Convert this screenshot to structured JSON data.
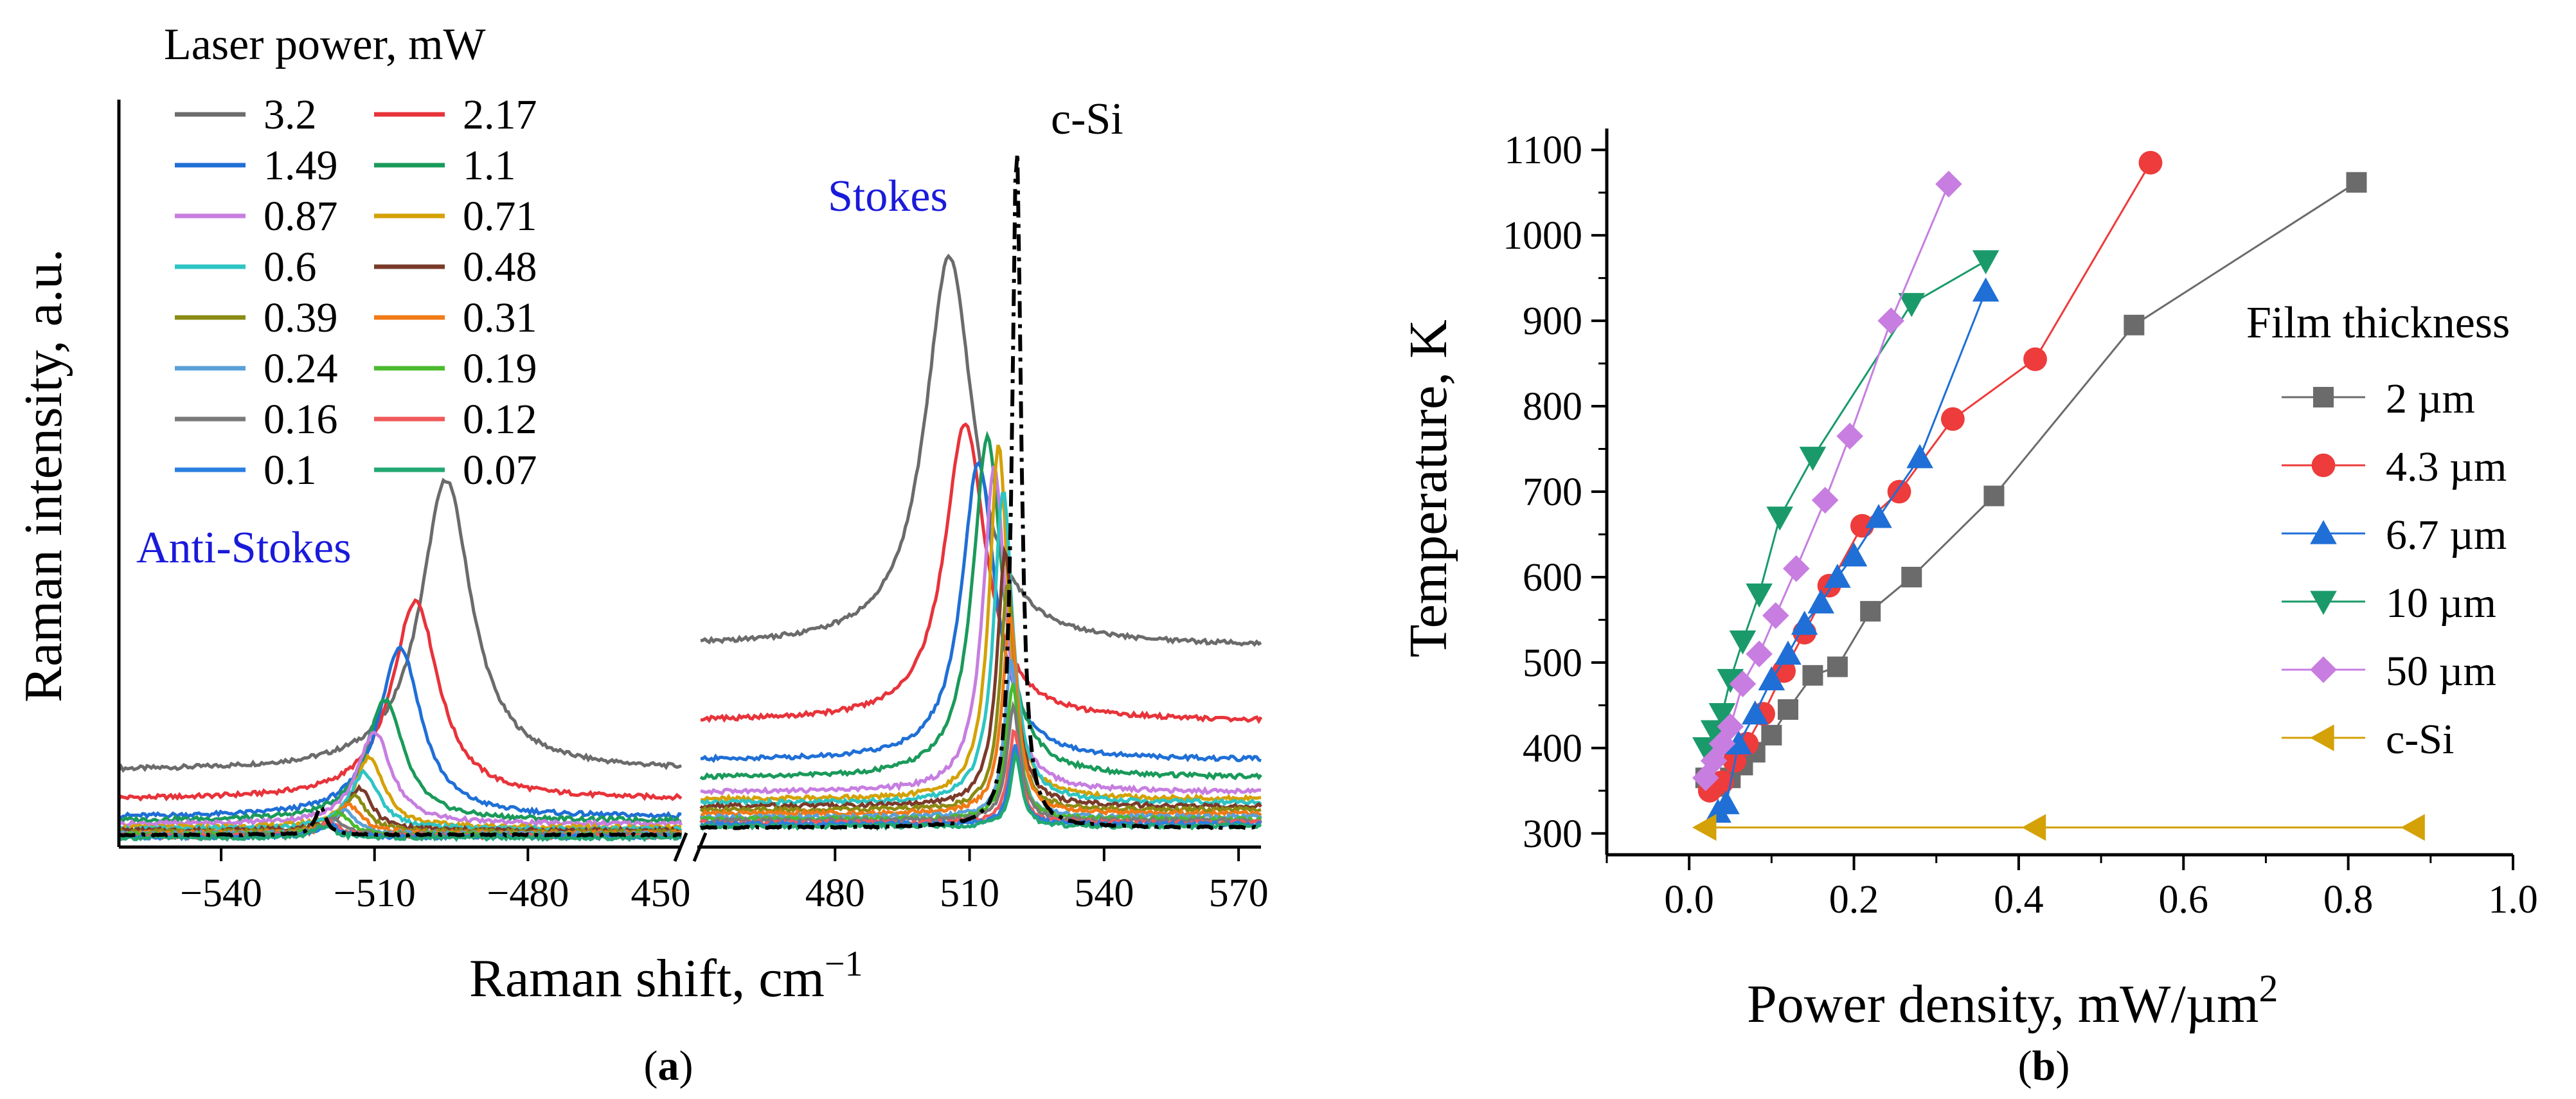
{
  "chart_data": [
    {
      "type": "line",
      "panel_label": "a",
      "title": "",
      "xlabel": "Raman shift, cm",
      "xlabel_sup": "−1",
      "ylabel": "Raman intensity, a.u.",
      "broken_x_axis": true,
      "left_segment": {
        "xlim": [
          -560,
          -450
        ],
        "ticks": [
          -540,
          -510,
          -480
        ],
        "tick_labels": [
          "−540",
          "−510",
          "−480"
        ],
        "edge_label": "450",
        "peak_center": -500,
        "label": "Anti-Stokes",
        "label_color": "#1a1adb"
      },
      "right_segment": {
        "xlim": [
          450,
          575
        ],
        "ticks": [
          480,
          510,
          540,
          570
        ],
        "tick_labels": [
          "480",
          "510",
          "540",
          "570"
        ],
        "label": "Stokes",
        "label_color": "#1a1adb"
      },
      "ylim": [
        0,
        1.0
      ],
      "legend_title": "Laser power, mW",
      "legend_placement": "top-left",
      "series": [
        {
          "name": "3.2",
          "color": "#6b6b6b",
          "stokes": {
            "center": 505.5,
            "width": 13,
            "amp": 0.55,
            "base": 0.275
          },
          "anti": {
            "center": -496,
            "width": 12,
            "amp": 0.41,
            "base": 0.1
          }
        },
        {
          "name": "2.17",
          "color": "#e8333a",
          "stokes": {
            "center": 509.0,
            "width": 11,
            "amp": 0.42,
            "base": 0.17
          },
          "anti": {
            "center": -502,
            "width": 11,
            "amp": 0.28,
            "base": 0.06
          }
        },
        {
          "name": "1.49",
          "color": "#1f6fd6",
          "stokes": {
            "center": 512.0,
            "width": 9,
            "amp": 0.42,
            "base": 0.115
          },
          "anti": {
            "center": -505,
            "width": 10,
            "amp": 0.24,
            "base": 0.035
          }
        },
        {
          "name": "1.1",
          "color": "#1a9a5a",
          "stokes": {
            "center": 514.0,
            "width": 8,
            "amp": 0.48,
            "base": 0.09
          },
          "anti": {
            "center": -508,
            "width": 9,
            "amp": 0.17,
            "base": 0.03
          }
        },
        {
          "name": "0.87",
          "color": "#c77ee0",
          "stokes": {
            "center": 515.5,
            "width": 6,
            "amp": 0.46,
            "base": 0.07
          },
          "anti": {
            "center": -510,
            "width": 8,
            "amp": 0.13,
            "base": 0.025
          }
        },
        {
          "name": "0.71",
          "color": "#d4a106",
          "stokes": {
            "center": 516.5,
            "width": 5,
            "amp": 0.5,
            "base": 0.06
          },
          "anti": {
            "center": -511,
            "width": 7,
            "amp": 0.1,
            "base": 0.02
          }
        },
        {
          "name": "0.6",
          "color": "#2ec4c4",
          "stokes": {
            "center": 517.5,
            "width": 5,
            "amp": 0.44,
            "base": 0.055
          },
          "anti": {
            "center": -512,
            "width": 7,
            "amp": 0.08,
            "base": 0.018
          }
        },
        {
          "name": "0.48",
          "color": "#7a3a2a",
          "stokes": {
            "center": 518.0,
            "width": 4.5,
            "amp": 0.36,
            "base": 0.05
          },
          "anti": {
            "center": -513,
            "width": 6,
            "amp": 0.06,
            "base": 0.016
          }
        },
        {
          "name": "0.39",
          "color": "#8b8b14",
          "stokes": {
            "center": 518.5,
            "width": 4,
            "amp": 0.32,
            "base": 0.045
          },
          "anti": {
            "center": -514,
            "width": 6,
            "amp": 0.05,
            "base": 0.014
          }
        },
        {
          "name": "0.31",
          "color": "#f07a16",
          "stokes": {
            "center": 519.0,
            "width": 4,
            "amp": 0.28,
            "base": 0.04
          },
          "anti": {
            "center": -515,
            "width": 6,
            "amp": 0.04,
            "base": 0.012
          }
        },
        {
          "name": "0.24",
          "color": "#5aa0d8",
          "stokes": {
            "center": 519.3,
            "width": 3.5,
            "amp": 0.22,
            "base": 0.035
          },
          "anti": {
            "center": -516,
            "width": 5,
            "amp": 0.035,
            "base": 0.011
          }
        },
        {
          "name": "0.19",
          "color": "#4aba2e",
          "stokes": {
            "center": 519.6,
            "width": 3.5,
            "amp": 0.19,
            "base": 0.032
          },
          "anti": {
            "center": -517,
            "width": 5,
            "amp": 0.03,
            "base": 0.01
          }
        },
        {
          "name": "0.16",
          "color": "#7a7a7a",
          "stokes": {
            "center": 519.8,
            "width": 3.5,
            "amp": 0.16,
            "base": 0.03
          },
          "anti": {
            "center": -518,
            "width": 5,
            "amp": 0.025,
            "base": 0.009
          }
        },
        {
          "name": "0.12",
          "color": "#f05a5a",
          "stokes": {
            "center": 520.0,
            "width": 3.2,
            "amp": 0.13,
            "base": 0.027
          },
          "anti": {
            "center": -519,
            "width": 5,
            "amp": 0.02,
            "base": 0.008
          }
        },
        {
          "name": "0.1",
          "color": "#2a7fe0",
          "stokes": {
            "center": 520.2,
            "width": 3.0,
            "amp": 0.11,
            "base": 0.025
          },
          "anti": {
            "center": -519,
            "width": 5,
            "amp": 0.018,
            "base": 0.007
          }
        },
        {
          "name": "0.07",
          "color": "#22a872",
          "stokes": {
            "center": 520.4,
            "width": 3.0,
            "amp": 0.1,
            "base": 0.022
          },
          "anti": {
            "center": -520,
            "width": 5,
            "amp": 0.015,
            "base": 0.006
          }
        }
      ],
      "reference": {
        "name": "c-Si",
        "color": "#000000",
        "style": "dash-dot",
        "stokes": {
          "center": 520.5,
          "width": 2.4,
          "amp": 0.97,
          "base": 0.02
        },
        "anti": {
          "center": -520.5,
          "width": 2.5,
          "amp": 0.04,
          "base": 0.01
        }
      },
      "annotations": [
        "Anti-Stokes",
        "Stokes",
        "c-Si"
      ]
    },
    {
      "type": "scatter",
      "panel_label": "b",
      "title": "",
      "xlabel": "Power density, mW/µm",
      "xlabel_sup": "2",
      "ylabel": "Temperature, K",
      "xlim": [
        -0.1,
        1.0
      ],
      "ylim": [
        275,
        1125
      ],
      "xticks": [
        0.0,
        0.2,
        0.4,
        0.6,
        0.8,
        1.0
      ],
      "xtick_labels": [
        "0.0",
        "0.2",
        "0.4",
        "0.6",
        "0.8",
        "1.0"
      ],
      "yticks": [
        300,
        400,
        500,
        600,
        700,
        800,
        900,
        1000,
        1100
      ],
      "ytick_labels": [
        "300",
        "400",
        "500",
        "600",
        "700",
        "800",
        "900",
        "1000",
        "1100"
      ],
      "legend_title": "Film thickness",
      "legend_placement": "right",
      "series": [
        {
          "name": "2 µm",
          "color": "#6b6b6b",
          "marker": "square",
          "x": [
            0.02,
            0.035,
            0.05,
            0.065,
            0.08,
            0.1,
            0.12,
            0.15,
            0.18,
            0.22,
            0.27,
            0.37,
            0.54,
            0.81
          ],
          "y": [
            365,
            355,
            365,
            380,
            395,
            415,
            445,
            485,
            495,
            560,
            600,
            695,
            895,
            1062
          ]
        },
        {
          "name": "4.3 µm",
          "color": "#ee3b3b",
          "marker": "circle",
          "x": [
            0.025,
            0.04,
            0.055,
            0.07,
            0.09,
            0.115,
            0.14,
            0.17,
            0.21,
            0.255,
            0.32,
            0.42,
            0.56
          ],
          "y": [
            350,
            360,
            385,
            405,
            440,
            490,
            535,
            590,
            660,
            700,
            785,
            855,
            1085
          ]
        },
        {
          "name": "6.7 µm",
          "color": "#1f6fd6",
          "marker": "triangle-up",
          "x": [
            0.035,
            0.045,
            0.06,
            0.08,
            0.1,
            0.12,
            0.14,
            0.16,
            0.18,
            0.2,
            0.23,
            0.28,
            0.36
          ],
          "y": [
            325,
            335,
            405,
            440,
            480,
            510,
            545,
            570,
            600,
            625,
            670,
            740,
            935
          ]
        },
        {
          "name": "10 µm",
          "color": "#1a9a6a",
          "marker": "triangle-down",
          "x": [
            0.02,
            0.03,
            0.04,
            0.05,
            0.065,
            0.085,
            0.11,
            0.15,
            0.27,
            0.36
          ],
          "y": [
            400,
            420,
            440,
            480,
            525,
            580,
            670,
            740,
            920,
            970
          ]
        },
        {
          "name": "50 µm",
          "color": "#c77ee0",
          "marker": "diamond",
          "x": [
            0.02,
            0.03,
            0.04,
            0.05,
            0.065,
            0.085,
            0.105,
            0.13,
            0.165,
            0.195,
            0.245,
            0.315
          ],
          "y": [
            365,
            385,
            405,
            425,
            475,
            510,
            555,
            610,
            690,
            765,
            900,
            1060
          ]
        },
        {
          "name": "c-Si",
          "color": "#d4a106",
          "marker": "triangle-left",
          "x": [
            0.02,
            0.42,
            0.88
          ],
          "y": [
            307,
            307,
            307
          ]
        }
      ]
    }
  ]
}
